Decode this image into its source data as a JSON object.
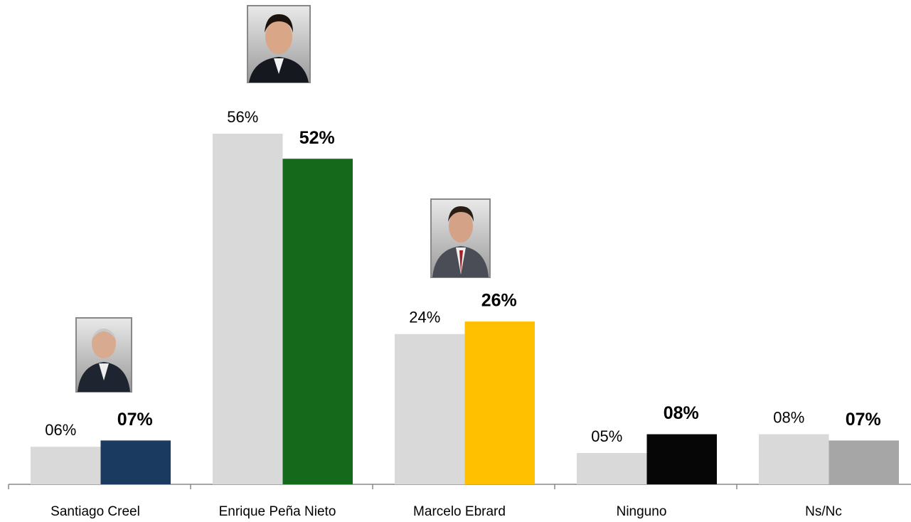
{
  "chart_data": {
    "type": "bar",
    "categories": [
      "Santiago Creel",
      "Enrique Peña Nieto",
      "Marcelo Ebrard",
      "Ninguno",
      "Ns/Nc"
    ],
    "series": [
      {
        "color": "#d9d9d9",
        "values": [
          6,
          56,
          24,
          5,
          8
        ],
        "value_labels": [
          "06%",
          "56%",
          "24%",
          "05%",
          "08%"
        ]
      },
      {
        "colors": [
          "#1b3a5f",
          "#146a1a",
          "#ffc000",
          "#060606",
          "#a6a6a6"
        ],
        "values": [
          7,
          52,
          26,
          8,
          7
        ],
        "value_labels": [
          "07%",
          "52%",
          "26%",
          "08%",
          "07%"
        ]
      }
    ]
  }
}
